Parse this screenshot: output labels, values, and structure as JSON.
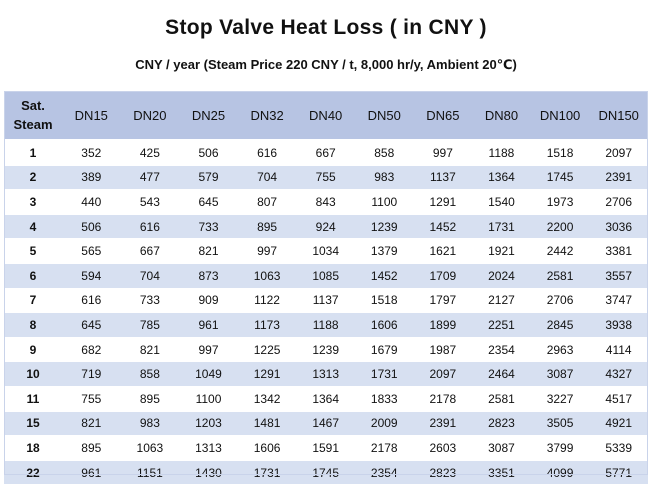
{
  "title": "Stop Valve Heat Loss ( in CNY )",
  "subtitle": "CNY / year (Steam Price 220 CNY / t, 8,000 hr/y, Ambient 20℃)",
  "table": {
    "steam_header_line1": "Sat.",
    "steam_header_line2": "Steam",
    "columns": [
      "DN15",
      "DN20",
      "DN25",
      "DN32",
      "DN40",
      "DN50",
      "DN65",
      "DN80",
      "DN100",
      "DN150"
    ],
    "rows": [
      {
        "steam": "1",
        "values": [
          "352",
          "425",
          "506",
          "616",
          "667",
          "858",
          "997",
          "1188",
          "1518",
          "2097"
        ]
      },
      {
        "steam": "2",
        "values": [
          "389",
          "477",
          "579",
          "704",
          "755",
          "983",
          "1137",
          "1364",
          "1745",
          "2391"
        ]
      },
      {
        "steam": "3",
        "values": [
          "440",
          "543",
          "645",
          "807",
          "843",
          "1100",
          "1291",
          "1540",
          "1973",
          "2706"
        ]
      },
      {
        "steam": "4",
        "values": [
          "506",
          "616",
          "733",
          "895",
          "924",
          "1239",
          "1452",
          "1731",
          "2200",
          "3036"
        ]
      },
      {
        "steam": "5",
        "values": [
          "565",
          "667",
          "821",
          "997",
          "1034",
          "1379",
          "1621",
          "1921",
          "2442",
          "3381"
        ]
      },
      {
        "steam": "6",
        "values": [
          "594",
          "704",
          "873",
          "1063",
          "1085",
          "1452",
          "1709",
          "2024",
          "2581",
          "3557"
        ]
      },
      {
        "steam": "7",
        "values": [
          "616",
          "733",
          "909",
          "1122",
          "1137",
          "1518",
          "1797",
          "2127",
          "2706",
          "3747"
        ]
      },
      {
        "steam": "8",
        "values": [
          "645",
          "785",
          "961",
          "1173",
          "1188",
          "1606",
          "1899",
          "2251",
          "2845",
          "3938"
        ]
      },
      {
        "steam": "9",
        "values": [
          "682",
          "821",
          "997",
          "1225",
          "1239",
          "1679",
          "1987",
          "2354",
          "2963",
          "4114"
        ]
      },
      {
        "steam": "10",
        "values": [
          "719",
          "858",
          "1049",
          "1291",
          "1313",
          "1731",
          "2097",
          "2464",
          "3087",
          "4327"
        ]
      },
      {
        "steam": "11",
        "values": [
          "755",
          "895",
          "1100",
          "1342",
          "1364",
          "1833",
          "2178",
          "2581",
          "3227",
          "4517"
        ]
      },
      {
        "steam": "15",
        "values": [
          "821",
          "983",
          "1203",
          "1481",
          "1467",
          "2009",
          "2391",
          "2823",
          "3505",
          "4921"
        ]
      },
      {
        "steam": "18",
        "values": [
          "895",
          "1063",
          "1313",
          "1606",
          "1591",
          "2178",
          "2603",
          "3087",
          "3799",
          "5339"
        ]
      },
      {
        "steam": "22",
        "values": [
          "961",
          "1151",
          "1430",
          "1731",
          "1745",
          "2354",
          "2823",
          "3351",
          "4099",
          "5771"
        ]
      }
    ]
  }
}
